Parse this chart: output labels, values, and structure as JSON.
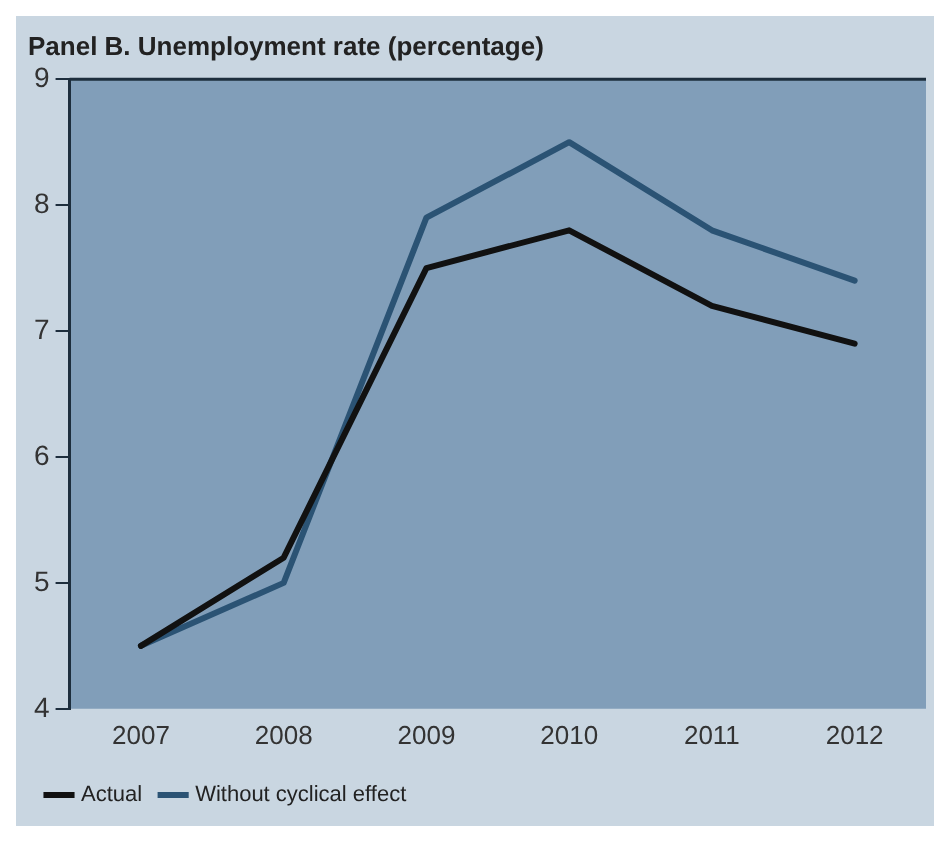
{
  "chart_data": {
    "type": "line",
    "title": "Panel B. Unemployment rate (percentage)",
    "categories": [
      "2007",
      "2008",
      "2009",
      "2010",
      "2011",
      "2012"
    ],
    "series": [
      {
        "name": "Actual",
        "color": "#111111",
        "values": [
          4.5,
          5.2,
          7.5,
          7.8,
          7.2,
          6.9
        ]
      },
      {
        "name": "Without cyclical effect",
        "color": "#2b5374",
        "values": [
          4.5,
          5.0,
          7.9,
          8.5,
          7.8,
          7.4
        ]
      }
    ],
    "ylim": [
      4,
      9
    ],
    "yticks": [
      4,
      5,
      6,
      7,
      8,
      9
    ],
    "grid": false,
    "legend": "bottom left",
    "marker": "none",
    "line_style": "solid"
  }
}
